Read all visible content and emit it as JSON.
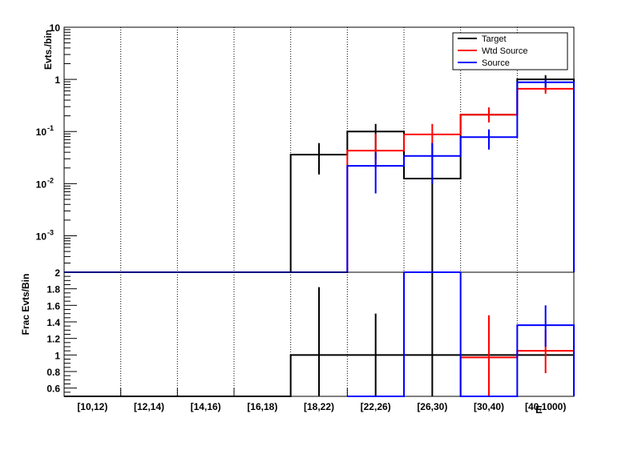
{
  "chart_data": [
    {
      "type": "histogram",
      "panel": "top",
      "ylabel": "Evts./bin",
      "yscale": "log",
      "ylim": [
        0.0002,
        10
      ],
      "yticks": [
        {
          "value": 10,
          "label": "10"
        },
        {
          "value": 1,
          "label": "1"
        },
        {
          "value": 0.1,
          "label": "10",
          "exp": "-1"
        },
        {
          "value": 0.01,
          "label": "10",
          "exp": "-2"
        },
        {
          "value": 0.001,
          "label": "10",
          "exp": "-3"
        }
      ],
      "categories": [
        "[10,12)",
        "[12,14)",
        "[14,16)",
        "[16,18)",
        "[18,22)",
        "[22,26)",
        "[26,30)",
        "[30,40)",
        "[40,1000)"
      ],
      "legend_position": "top-right",
      "series": [
        {
          "name": "Target",
          "color": "#000000",
          "values": [
            0,
            0,
            0,
            0,
            0.036,
            0.1,
            0.0125,
            0.21,
            1.0
          ],
          "err_lo": [
            null,
            null,
            null,
            null,
            0.015,
            0.03,
            0.0001,
            0.15,
            0.6
          ],
          "err_hi": [
            null,
            null,
            null,
            null,
            0.06,
            0.14,
            0.06,
            0.28,
            1.2
          ]
        },
        {
          "name": "Wtd Source",
          "color": "#ff0000",
          "values": [
            0,
            0,
            0,
            0,
            0,
            0.043,
            0.088,
            0.21,
            0.66
          ],
          "err_lo": [
            null,
            null,
            null,
            null,
            null,
            0.02,
            0.05,
            0.15,
            0.53
          ],
          "err_hi": [
            null,
            null,
            null,
            null,
            null,
            0.09,
            0.14,
            0.29,
            0.8
          ]
        },
        {
          "name": "Source",
          "color": "#0000ff",
          "values": [
            0,
            0,
            0,
            0,
            0,
            0.022,
            0.034,
            0.078,
            0.88
          ],
          "err_lo": [
            null,
            null,
            null,
            null,
            null,
            0.0065,
            0.01,
            0.045,
            0.7
          ],
          "err_hi": [
            null,
            null,
            null,
            null,
            null,
            0.04,
            0.06,
            0.11,
            1.0
          ]
        }
      ]
    },
    {
      "type": "histogram",
      "panel": "bottom",
      "ylabel": "Frac Evts/Bin",
      "ylim": [
        0.5,
        2
      ],
      "yticks": [
        {
          "value": 0.6,
          "label": "0.6"
        },
        {
          "value": 0.8,
          "label": "0.8"
        },
        {
          "value": 1.0,
          "label": "1"
        },
        {
          "value": 1.2,
          "label": "1.2"
        },
        {
          "value": 1.4,
          "label": "1.4"
        },
        {
          "value": 1.6,
          "label": "1.6"
        },
        {
          "value": 1.8,
          "label": "1.8"
        },
        {
          "value": 2.0,
          "label": "2"
        }
      ],
      "categories": [
        "[10,12)",
        "[12,14)",
        "[14,16)",
        "[16,18)",
        "[18,22)",
        "[22,26)",
        "[26,30)",
        "[30,40)",
        "[40,1000)"
      ],
      "xlabel": "E",
      "series": [
        {
          "name": "Target",
          "color": "#000000",
          "values": [
            0.5,
            0.5,
            0.5,
            0.5,
            1.0,
            1.0,
            1.0,
            1.0,
            1.0
          ],
          "err_lo": [
            null,
            null,
            null,
            null,
            0.5,
            0.5,
            0.5,
            null,
            null
          ],
          "err_hi": [
            null,
            null,
            null,
            null,
            1.82,
            1.5,
            2.0,
            null,
            null
          ]
        },
        {
          "name": "Wtd Source",
          "color": "#ff0000",
          "values": [
            null,
            null,
            null,
            null,
            null,
            null,
            null,
            0.97,
            1.05
          ],
          "err_lo": [
            null,
            null,
            null,
            null,
            null,
            null,
            null,
            0.5,
            0.78
          ],
          "err_hi": [
            null,
            null,
            null,
            null,
            null,
            null,
            null,
            1.48,
            1.3
          ]
        },
        {
          "name": "Source",
          "color": "#0000ff",
          "values": [
            null,
            null,
            null,
            null,
            null,
            0.5,
            2.0,
            0.5,
            1.36
          ],
          "err_lo": [
            null,
            null,
            null,
            null,
            null,
            null,
            null,
            null,
            1.1
          ],
          "err_hi": [
            null,
            null,
            null,
            null,
            null,
            null,
            null,
            null,
            1.6
          ]
        }
      ]
    }
  ]
}
